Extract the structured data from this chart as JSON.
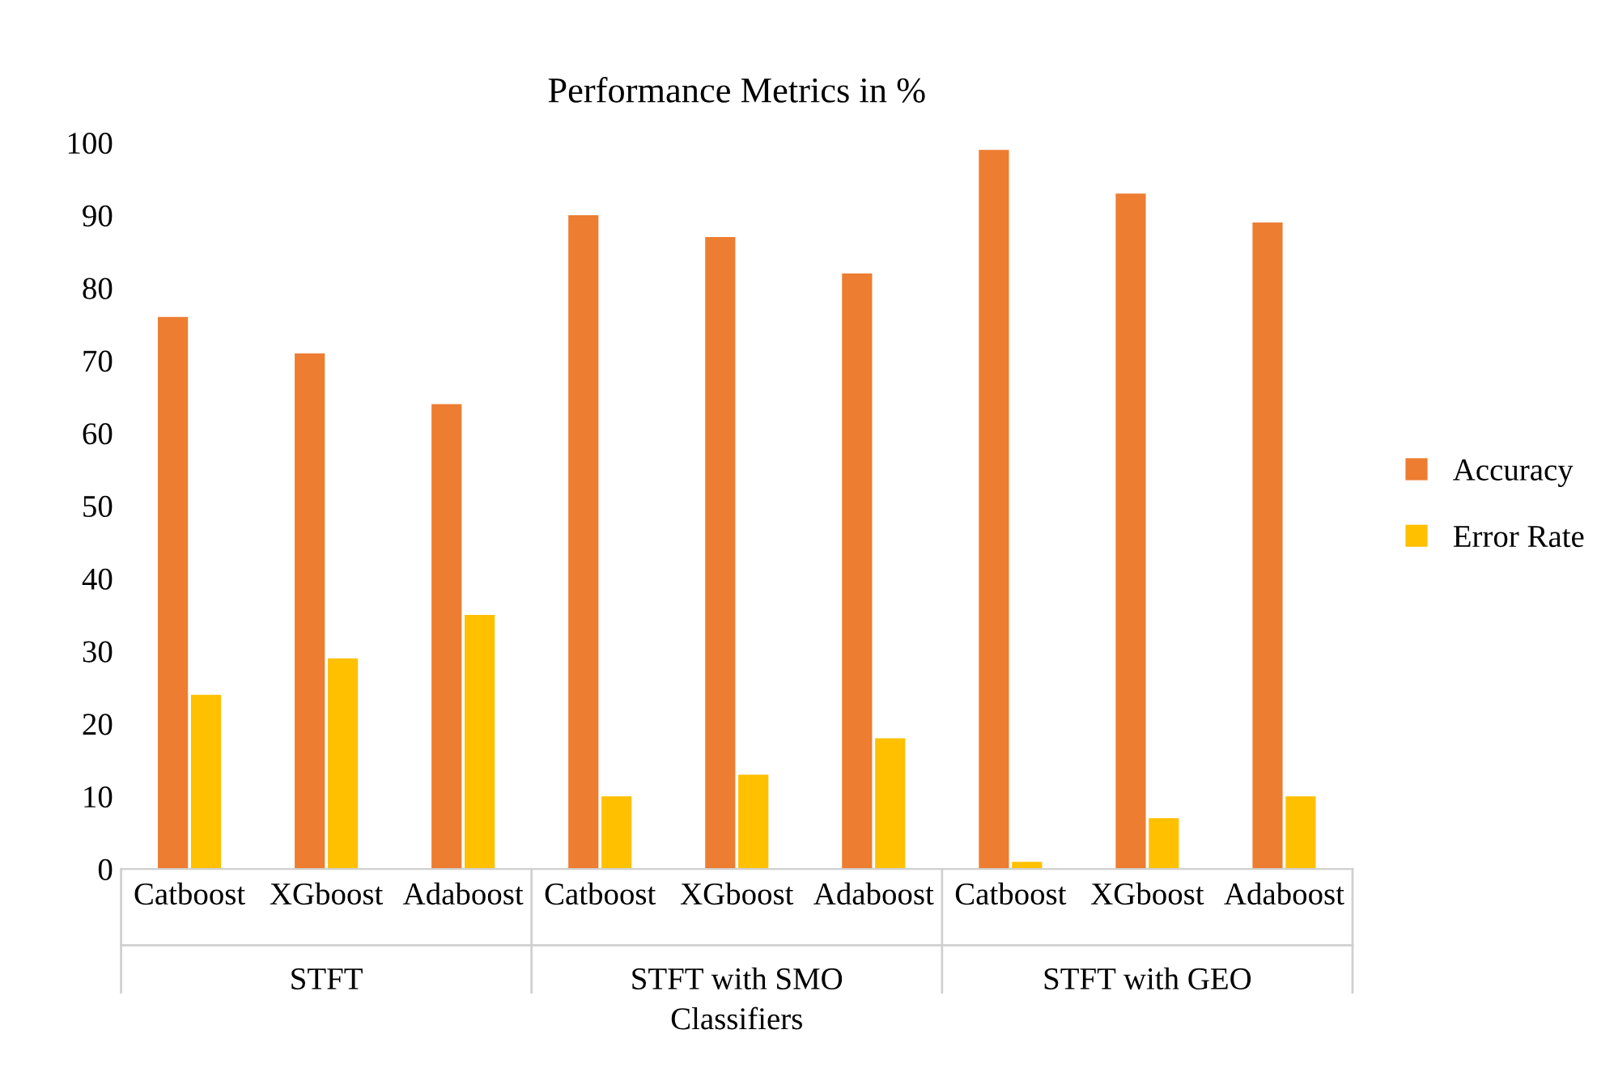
{
  "chart_data": {
    "type": "bar",
    "title": "Performance Metrics in %",
    "xlabel": "Classifiers",
    "categories": [
      "Catboost",
      "XGboost",
      "Adaboost",
      "Catboost",
      "XGboost",
      "Adaboost",
      "Catboost",
      "XGboost",
      "Adaboost"
    ],
    "series": [
      {
        "name": "Accuracy",
        "color": "#ed7d31",
        "values": [
          76,
          71,
          64,
          90,
          87,
          82,
          99,
          93,
          89
        ]
      },
      {
        "name": "Error Rate",
        "color": "#ffc000",
        "values": [
          24,
          29,
          35,
          10,
          13,
          18,
          1,
          7,
          10
        ]
      }
    ],
    "annotations": [
      "STFT",
      "STFT with SMO",
      "STFT with GEO"
    ],
    "ylim": [
      0,
      100
    ],
    "yticks": [
      0,
      10,
      20,
      30,
      40,
      50,
      60,
      70,
      80,
      90,
      100
    ],
    "grid": false,
    "legend": "right"
  }
}
